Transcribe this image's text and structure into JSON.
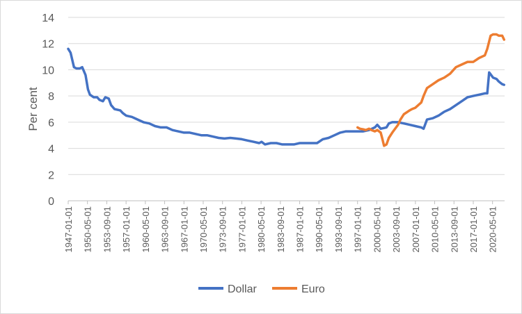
{
  "chart_data": {
    "type": "line",
    "ylabel": "Per cent",
    "ylim": [
      0,
      14
    ],
    "yticks": [
      0,
      2,
      4,
      6,
      8,
      10,
      12,
      14
    ],
    "xlim": [
      "1947-01-01",
      "2022-06-01"
    ],
    "xtick_labels": [
      "1947-01-01",
      "1950-05-01",
      "1953-09-01",
      "1957-01-01",
      "1960-05-01",
      "1963-09-01",
      "1967-01-01",
      "1970-05-01",
      "1973-09-01",
      "1977-01-01",
      "1980-05-01",
      "1983-09-01",
      "1987-01-01",
      "1990-05-01",
      "1993-09-01",
      "1997-01-01",
      "2000-05-01",
      "2003-09-01",
      "2007-01-01",
      "2010-05-01",
      "2013-09-01",
      "2017-01-01",
      "2020-05-01"
    ],
    "grid": "horizontal",
    "legend": "bottom",
    "series": [
      {
        "name": "Dollar",
        "color": "#4472C4",
        "points": [
          [
            "1947-01-01",
            11.6
          ],
          [
            "1947-06-01",
            11.3
          ],
          [
            "1948-01-01",
            10.2
          ],
          [
            "1948-06-01",
            10.1
          ],
          [
            "1949-01-01",
            10.1
          ],
          [
            "1949-06-01",
            10.2
          ],
          [
            "1950-01-01",
            9.6
          ],
          [
            "1950-06-01",
            8.5
          ],
          [
            "1950-10-01",
            8.1
          ],
          [
            "1951-06-01",
            7.9
          ],
          [
            "1952-01-01",
            7.9
          ],
          [
            "1952-06-01",
            7.7
          ],
          [
            "1953-01-01",
            7.6
          ],
          [
            "1953-06-01",
            7.9
          ],
          [
            "1954-01-01",
            7.8
          ],
          [
            "1954-06-01",
            7.3
          ],
          [
            "1955-01-01",
            7.0
          ],
          [
            "1956-01-01",
            6.9
          ],
          [
            "1956-06-01",
            6.7
          ],
          [
            "1957-01-01",
            6.5
          ],
          [
            "1958-01-01",
            6.4
          ],
          [
            "1959-01-01",
            6.2
          ],
          [
            "1960-01-01",
            6.0
          ],
          [
            "1961-01-01",
            5.9
          ],
          [
            "1962-01-01",
            5.7
          ],
          [
            "1963-01-01",
            5.6
          ],
          [
            "1964-01-01",
            5.6
          ],
          [
            "1965-01-01",
            5.4
          ],
          [
            "1966-01-01",
            5.3
          ],
          [
            "1967-01-01",
            5.2
          ],
          [
            "1968-01-01",
            5.2
          ],
          [
            "1969-01-01",
            5.1
          ],
          [
            "1970-01-01",
            5.0
          ],
          [
            "1971-01-01",
            5.0
          ],
          [
            "1972-01-01",
            4.9
          ],
          [
            "1973-01-01",
            4.8
          ],
          [
            "1974-01-01",
            4.75
          ],
          [
            "1975-01-01",
            4.8
          ],
          [
            "1976-01-01",
            4.75
          ],
          [
            "1977-01-01",
            4.7
          ],
          [
            "1978-01-01",
            4.6
          ],
          [
            "1979-01-01",
            4.5
          ],
          [
            "1980-01-01",
            4.4
          ],
          [
            "1980-06-01",
            4.5
          ],
          [
            "1981-01-01",
            4.3
          ],
          [
            "1982-01-01",
            4.4
          ],
          [
            "1983-01-01",
            4.4
          ],
          [
            "1984-01-01",
            4.3
          ],
          [
            "1985-01-01",
            4.3
          ],
          [
            "1986-01-01",
            4.3
          ],
          [
            "1987-01-01",
            4.4
          ],
          [
            "1988-01-01",
            4.4
          ],
          [
            "1989-01-01",
            4.4
          ],
          [
            "1990-01-01",
            4.4
          ],
          [
            "1991-01-01",
            4.7
          ],
          [
            "1992-01-01",
            4.8
          ],
          [
            "1993-01-01",
            5.0
          ],
          [
            "1994-01-01",
            5.2
          ],
          [
            "1995-01-01",
            5.3
          ],
          [
            "1996-01-01",
            5.3
          ],
          [
            "1997-01-01",
            5.3
          ],
          [
            "1998-01-01",
            5.3
          ],
          [
            "1999-01-01",
            5.4
          ],
          [
            "2000-01-01",
            5.6
          ],
          [
            "2000-06-01",
            5.8
          ],
          [
            "2001-01-01",
            5.5
          ],
          [
            "2002-01-01",
            5.6
          ],
          [
            "2002-06-01",
            5.9
          ],
          [
            "2003-01-01",
            6.0
          ],
          [
            "2004-01-01",
            6.0
          ],
          [
            "2005-01-01",
            5.9
          ],
          [
            "2006-01-01",
            5.8
          ],
          [
            "2007-01-01",
            5.7
          ],
          [
            "2008-01-01",
            5.6
          ],
          [
            "2008-06-01",
            5.5
          ],
          [
            "2009-01-01",
            6.2
          ],
          [
            "2010-01-01",
            6.3
          ],
          [
            "2011-01-01",
            6.5
          ],
          [
            "2012-01-01",
            6.8
          ],
          [
            "2013-01-01",
            7.0
          ],
          [
            "2014-01-01",
            7.3
          ],
          [
            "2015-01-01",
            7.6
          ],
          [
            "2016-01-01",
            7.9
          ],
          [
            "2017-01-01",
            8.0
          ],
          [
            "2018-01-01",
            8.1
          ],
          [
            "2019-01-01",
            8.2
          ],
          [
            "2019-06-01",
            8.2
          ],
          [
            "2019-10-01",
            9.8
          ],
          [
            "2020-06-01",
            9.4
          ],
          [
            "2021-01-01",
            9.3
          ],
          [
            "2021-06-01",
            9.1
          ],
          [
            "2022-01-01",
            8.9
          ],
          [
            "2022-05-01",
            8.85
          ]
        ]
      },
      {
        "name": "Euro",
        "color": "#ED7D31",
        "points": [
          [
            "1997-01-01",
            5.6
          ],
          [
            "1997-06-01",
            5.5
          ],
          [
            "1998-01-01",
            5.45
          ],
          [
            "1998-06-01",
            5.4
          ],
          [
            "1999-01-01",
            5.5
          ],
          [
            "1999-06-01",
            5.4
          ],
          [
            "2000-01-01",
            5.3
          ],
          [
            "2000-06-01",
            5.4
          ],
          [
            "2001-01-01",
            5.2
          ],
          [
            "2001-04-01",
            4.8
          ],
          [
            "2001-08-01",
            4.2
          ],
          [
            "2002-01-01",
            4.3
          ],
          [
            "2002-06-01",
            4.8
          ],
          [
            "2003-01-01",
            5.2
          ],
          [
            "2004-01-01",
            5.8
          ],
          [
            "2004-06-01",
            6.2
          ],
          [
            "2005-01-01",
            6.6
          ],
          [
            "2006-01-01",
            6.9
          ],
          [
            "2006-06-01",
            7.0
          ],
          [
            "2007-01-01",
            7.1
          ],
          [
            "2008-01-01",
            7.5
          ],
          [
            "2008-06-01",
            8.0
          ],
          [
            "2009-01-01",
            8.6
          ],
          [
            "2010-01-01",
            8.9
          ],
          [
            "2011-01-01",
            9.2
          ],
          [
            "2012-01-01",
            9.4
          ],
          [
            "2013-01-01",
            9.7
          ],
          [
            "2014-01-01",
            10.2
          ],
          [
            "2015-01-01",
            10.4
          ],
          [
            "2016-01-01",
            10.6
          ],
          [
            "2017-01-01",
            10.6
          ],
          [
            "2018-01-01",
            10.9
          ],
          [
            "2019-01-01",
            11.1
          ],
          [
            "2019-06-01",
            11.6
          ],
          [
            "2020-01-01",
            12.6
          ],
          [
            "2020-06-01",
            12.7
          ],
          [
            "2021-01-01",
            12.7
          ],
          [
            "2021-06-01",
            12.6
          ],
          [
            "2022-01-01",
            12.6
          ],
          [
            "2022-05-01",
            12.3
          ]
        ]
      }
    ]
  }
}
